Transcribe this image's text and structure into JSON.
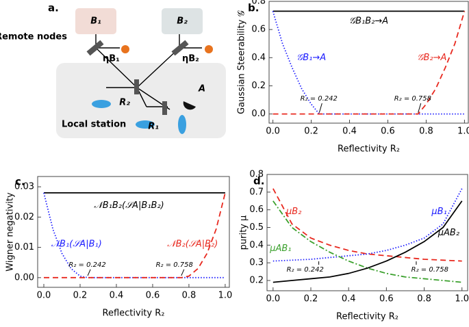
{
  "diagram": {
    "panel_label": "a.",
    "node_b1": "B₁",
    "node_b2": "B₂",
    "remote": "Remote nodes",
    "eta_b1": "ηB₁",
    "eta_b2": "ηB₂",
    "r2": "R₂",
    "r1": "R₁",
    "a": "A",
    "local": "Local station"
  },
  "chart_data": [
    {
      "type": "line",
      "panel_label": "b.",
      "ylabel": "Gaussian Steerability 𝒢",
      "xlabel": "Reflectivity R₂",
      "x": [
        0,
        0.05,
        0.1,
        0.15,
        0.2,
        0.242,
        0.3,
        0.4,
        0.5,
        0.6,
        0.7,
        0.758,
        0.8,
        0.85,
        0.9,
        0.95,
        1.0
      ],
      "series": [
        {
          "name": "𝒢B₁B₂→A",
          "color": "#000000",
          "line_style": "solid",
          "values": [
            0.73,
            0.73,
            0.73,
            0.73,
            0.73,
            0.73,
            0.73,
            0.73,
            0.73,
            0.73,
            0.73,
            0.73,
            0.73,
            0.73,
            0.73,
            0.73,
            0.73
          ]
        },
        {
          "name": "𝒢B₁→A",
          "color": "#1a1aff",
          "line_style": "dotted",
          "values": [
            0.73,
            0.5,
            0.33,
            0.18,
            0.07,
            0,
            0,
            0,
            0,
            0,
            0,
            0,
            0,
            0,
            0,
            0,
            0
          ]
        },
        {
          "name": "𝒢B₂→A",
          "color": "#e8281e",
          "line_style": "dashed",
          "values": [
            0,
            0,
            0,
            0,
            0,
            0,
            0,
            0,
            0,
            0,
            0,
            0,
            0.07,
            0.18,
            0.33,
            0.5,
            0.73
          ]
        }
      ],
      "annotations": [
        "R₂ = 0.242",
        "R₂ = 0.758"
      ],
      "xlim": [
        -0.02,
        1.02
      ],
      "ylim": [
        -0.065,
        0.8
      ],
      "xticks": [
        {
          "value": 0,
          "label": "0.0"
        },
        {
          "value": 0.2,
          "label": "0.2"
        },
        {
          "value": 0.4,
          "label": "0.4"
        },
        {
          "value": 0.6,
          "label": "0.6"
        },
        {
          "value": 0.8,
          "label": "0.8"
        },
        {
          "value": 1,
          "label": "1.0"
        }
      ],
      "yticks": [
        {
          "value": 0,
          "label": "0.0"
        },
        0.2,
        0.4,
        0.6,
        0.8
      ]
    },
    {
      "type": "line",
      "panel_label": "c.",
      "ylabel": "Wigner negativity",
      "xlabel": "Reflectivity R₂",
      "x": [
        0,
        0.05,
        0.1,
        0.15,
        0.2,
        0.242,
        0.3,
        0.4,
        0.5,
        0.6,
        0.7,
        0.758,
        0.8,
        0.85,
        0.9,
        0.95,
        1.0
      ],
      "series": [
        {
          "name": "𝒩B₁B₂(𝒮A|B₁B₂)",
          "color": "#000000",
          "line_style": "solid",
          "values": [
            0.028,
            0.028,
            0.028,
            0.028,
            0.028,
            0.028,
            0.028,
            0.028,
            0.028,
            0.028,
            0.028,
            0.028,
            0.028,
            0.028,
            0.028,
            0.028,
            0.028
          ]
        },
        {
          "name": "𝒩B₁(𝒮A|B₁)",
          "color": "#1a1aff",
          "line_style": "dotted",
          "values": [
            0.028,
            0.016,
            0.008,
            0.003,
            0.0005,
            0,
            0,
            0,
            0,
            0,
            0,
            0,
            0,
            0,
            0,
            0,
            0
          ]
        },
        {
          "name": "𝒩B₂(𝒮A|B₂)",
          "color": "#e8281e",
          "line_style": "dashed",
          "values": [
            0,
            0,
            0,
            0,
            0,
            0,
            0,
            0,
            0,
            0,
            0,
            0,
            0.0005,
            0.003,
            0.008,
            0.016,
            0.028
          ]
        }
      ],
      "annotations": [
        "R₂ = 0.242",
        "R₂ = 0.758"
      ],
      "xlim": [
        -0.034,
        1.023
      ],
      "ylim": [
        -0.0032,
        0.0334
      ],
      "xticks": [
        {
          "value": 0,
          "label": "0.0"
        },
        {
          "value": 0.2,
          "label": "0.2"
        },
        {
          "value": 0.4,
          "label": "0.4"
        },
        {
          "value": 0.6,
          "label": "0.6"
        },
        {
          "value": 0.8,
          "label": "0.8"
        },
        {
          "value": 1,
          "label": "1.0"
        }
      ],
      "yticks": [
        {
          "value": 0,
          "label": "0.00"
        },
        {
          "value": 0.01,
          "label": "0.01"
        },
        {
          "value": 0.02,
          "label": "0.02"
        },
        {
          "value": 0.03,
          "label": "0.03"
        }
      ]
    },
    {
      "type": "line",
      "panel_label": "d.",
      "ylabel": "purity μ",
      "xlabel": "Reflectivity R₂",
      "x": [
        0,
        0.1,
        0.2,
        0.3,
        0.4,
        0.5,
        0.6,
        0.7,
        0.8,
        0.9,
        1.0
      ],
      "series": [
        {
          "name": "μB₂",
          "color": "#e8281e",
          "line_style": "dashed",
          "values": [
            0.72,
            0.52,
            0.44,
            0.4,
            0.37,
            0.35,
            0.34,
            0.33,
            0.32,
            0.315,
            0.31
          ]
        },
        {
          "name": "μB₁",
          "color": "#1a1aff",
          "line_style": "dotted",
          "values": [
            0.31,
            0.315,
            0.32,
            0.33,
            0.34,
            0.35,
            0.37,
            0.4,
            0.44,
            0.52,
            0.72
          ]
        },
        {
          "name": "μAB₁",
          "color": "#3aa02c",
          "line_style": "dashdot",
          "values": [
            0.65,
            0.5,
            0.42,
            0.36,
            0.31,
            0.27,
            0.24,
            0.22,
            0.21,
            0.2,
            0.19
          ]
        },
        {
          "name": "μAB₂",
          "color": "#000000",
          "line_style": "solid",
          "values": [
            0.19,
            0.2,
            0.21,
            0.22,
            0.24,
            0.27,
            0.31,
            0.36,
            0.42,
            0.5,
            0.65
          ]
        }
      ],
      "annotations": [
        "R₂ = 0.242",
        "R₂ = 0.758"
      ],
      "xlim": [
        -0.032,
        1.03
      ],
      "ylim": [
        0.142,
        0.8
      ],
      "xticks": [
        {
          "value": 0,
          "label": "0.0"
        },
        {
          "value": 0.2,
          "label": "0.2"
        },
        {
          "value": 0.4,
          "label": "0.4"
        },
        {
          "value": 0.6,
          "label": "0.6"
        },
        {
          "value": 0.8,
          "label": "0.8"
        },
        {
          "value": 1,
          "label": "1.0"
        }
      ],
      "yticks": [
        0.2,
        0.3,
        0.4,
        0.5,
        0.6,
        0.7,
        0.8
      ]
    }
  ]
}
